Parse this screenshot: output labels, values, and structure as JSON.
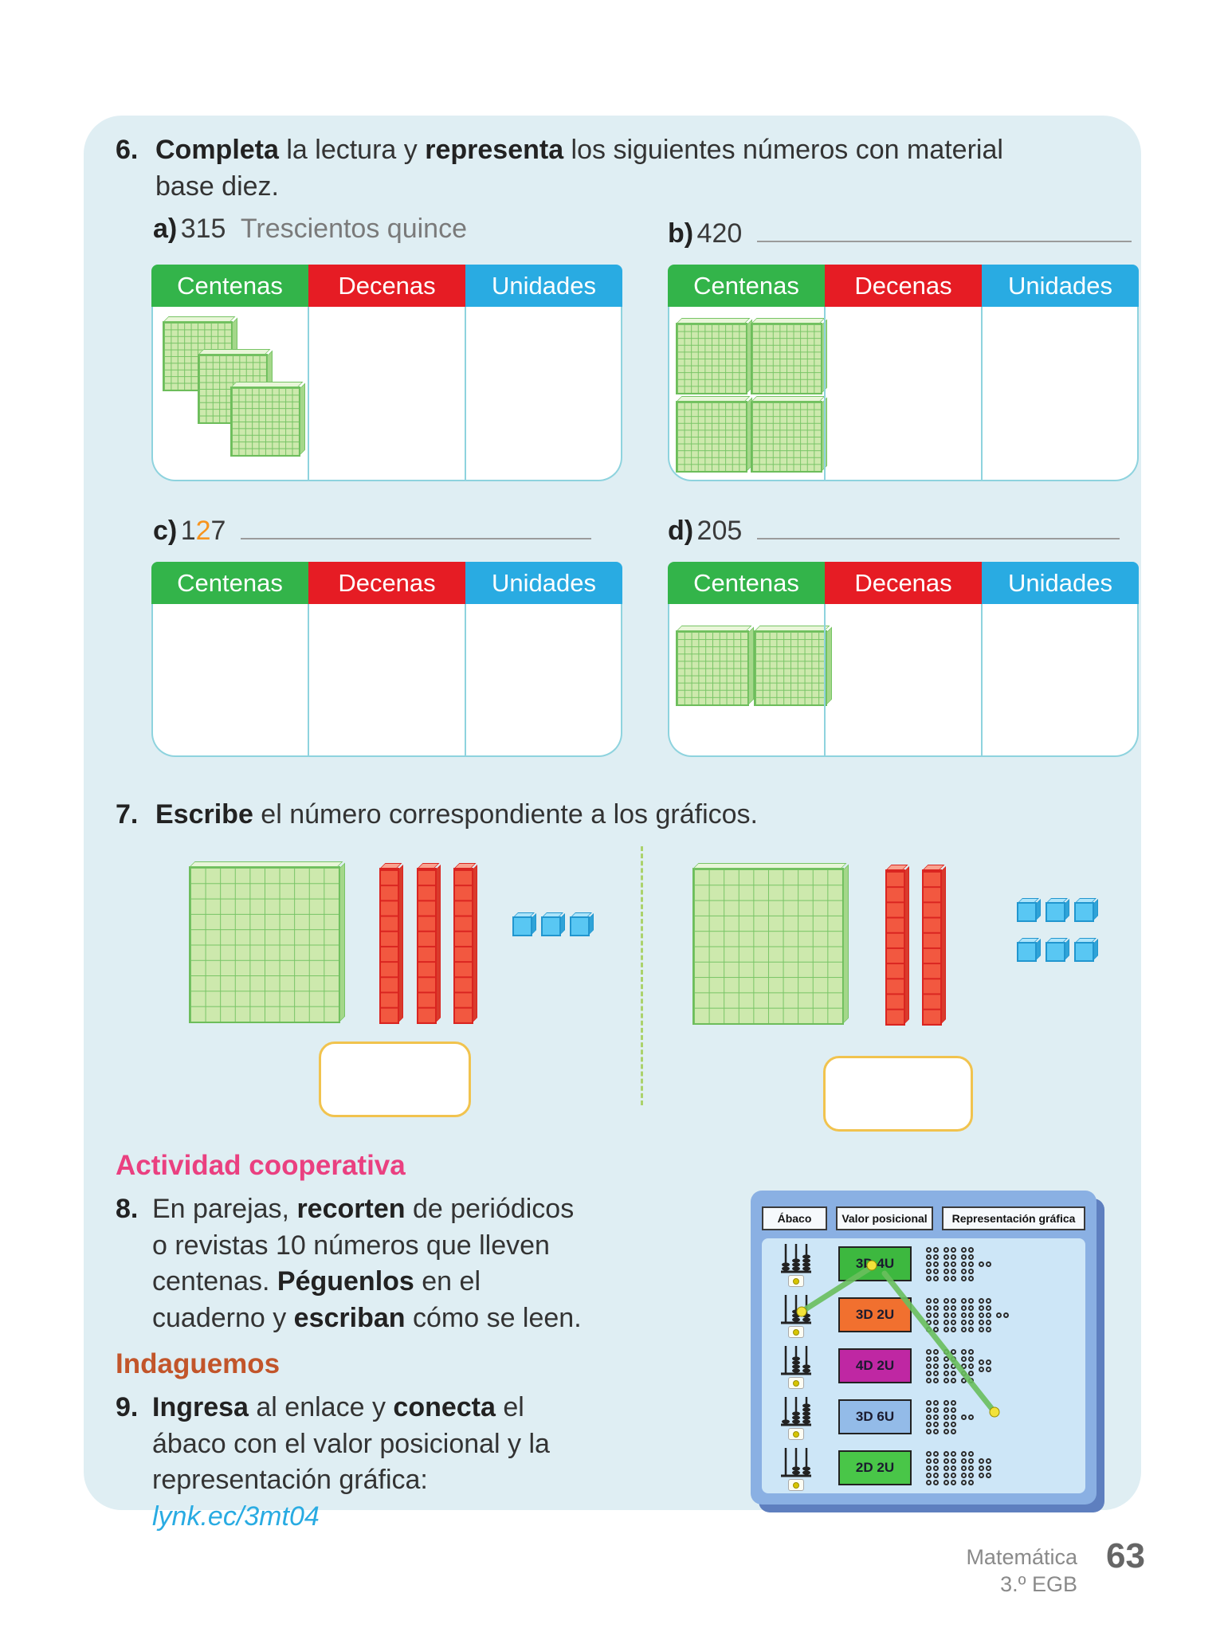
{
  "place_table": {
    "headers": [
      "Centenas",
      "Decenas",
      "Unidades"
    ]
  },
  "exercise6": {
    "number": "6.",
    "bold1": "Completa",
    "mid1": " la lectura y ",
    "bold2": "representa",
    "rest1": " los siguientes números con material",
    "rest2": "base diez.",
    "items": [
      {
        "label": "a)",
        "value": "315",
        "reading": "Trescientos quince",
        "blocks": {
          "hundreds": 3,
          "tens": 0,
          "units": 0
        }
      },
      {
        "label": "b)",
        "value": "420",
        "reading": "",
        "blocks": {
          "hundreds": 4,
          "tens": 0,
          "units": 0
        }
      },
      {
        "label": "c)",
        "value_part1": "1",
        "value_part2": "2",
        "value_part3": "7",
        "reading": "",
        "blocks": {
          "hundreds": 0,
          "tens": 0,
          "units": 0
        }
      },
      {
        "label": "d)",
        "value": "205",
        "reading": "",
        "blocks": {
          "hundreds": 2,
          "tens": 0,
          "units": 0
        }
      }
    ]
  },
  "exercise7": {
    "number": "7.",
    "bold": "Escribe",
    "rest": " el número correspondiente a los gráficos.",
    "groups": [
      {
        "hundreds": 1,
        "tens": 3,
        "units": 3,
        "answer": ""
      },
      {
        "hundreds": 1,
        "tens": 2,
        "units": 6,
        "answer": ""
      }
    ]
  },
  "section8": {
    "title": "Actividad cooperativa",
    "number": "8.",
    "l1a": "En parejas, ",
    "l1b": "recorten",
    "l1c": " de periódicos",
    "l2": "o revistas 10 números que lleven",
    "l3a": "centenas. ",
    "l3b": "Péguenlos",
    "l3c": " en el",
    "l4a": "cuaderno y ",
    "l4b": "escriban",
    "l4c": " cómo se leen."
  },
  "section9": {
    "title": "Indaguemos",
    "number": "9.",
    "l1a": "Ingresa",
    "l1b": " al enlace y ",
    "l1c": "conecta",
    "l1d": " el",
    "l2": "ábaco con el valor posicional y la",
    "l3": "representación gráfica:",
    "link": "lynk.ec/3mt04"
  },
  "app": {
    "headers": [
      "Ábaco",
      "Valor posicional",
      "Representación gráfica"
    ],
    "rows": [
      {
        "box_label": "3D 4U",
        "box_color": "#3db83f",
        "tens": 3,
        "units": 2
      },
      {
        "box_label": "3D 2U",
        "box_color": "#f1702f",
        "tens": 4,
        "units": 2
      },
      {
        "box_label": "4D 2U",
        "box_color": "#bf27a3",
        "tens": 3,
        "units": 4
      },
      {
        "box_label": "3D 6U",
        "box_color": "#93bbe8",
        "tens": 2,
        "units": 2
      },
      {
        "box_label": "2D 2U",
        "box_color": "#49c648",
        "tens": 3,
        "units": 6
      }
    ]
  },
  "footer": {
    "subject": "Matemática",
    "grade": "3.º EGB",
    "page_number": "63"
  },
  "colors": {
    "card_bg": "#dfeef3",
    "header_green": "#33b44a",
    "header_red": "#e61c24",
    "header_blue": "#29abe2",
    "accent_pink": "#ea4080",
    "accent_orange": "#c2552a",
    "link_blue": "#29abe2",
    "highlight_digit_orange": "#f7941e"
  }
}
